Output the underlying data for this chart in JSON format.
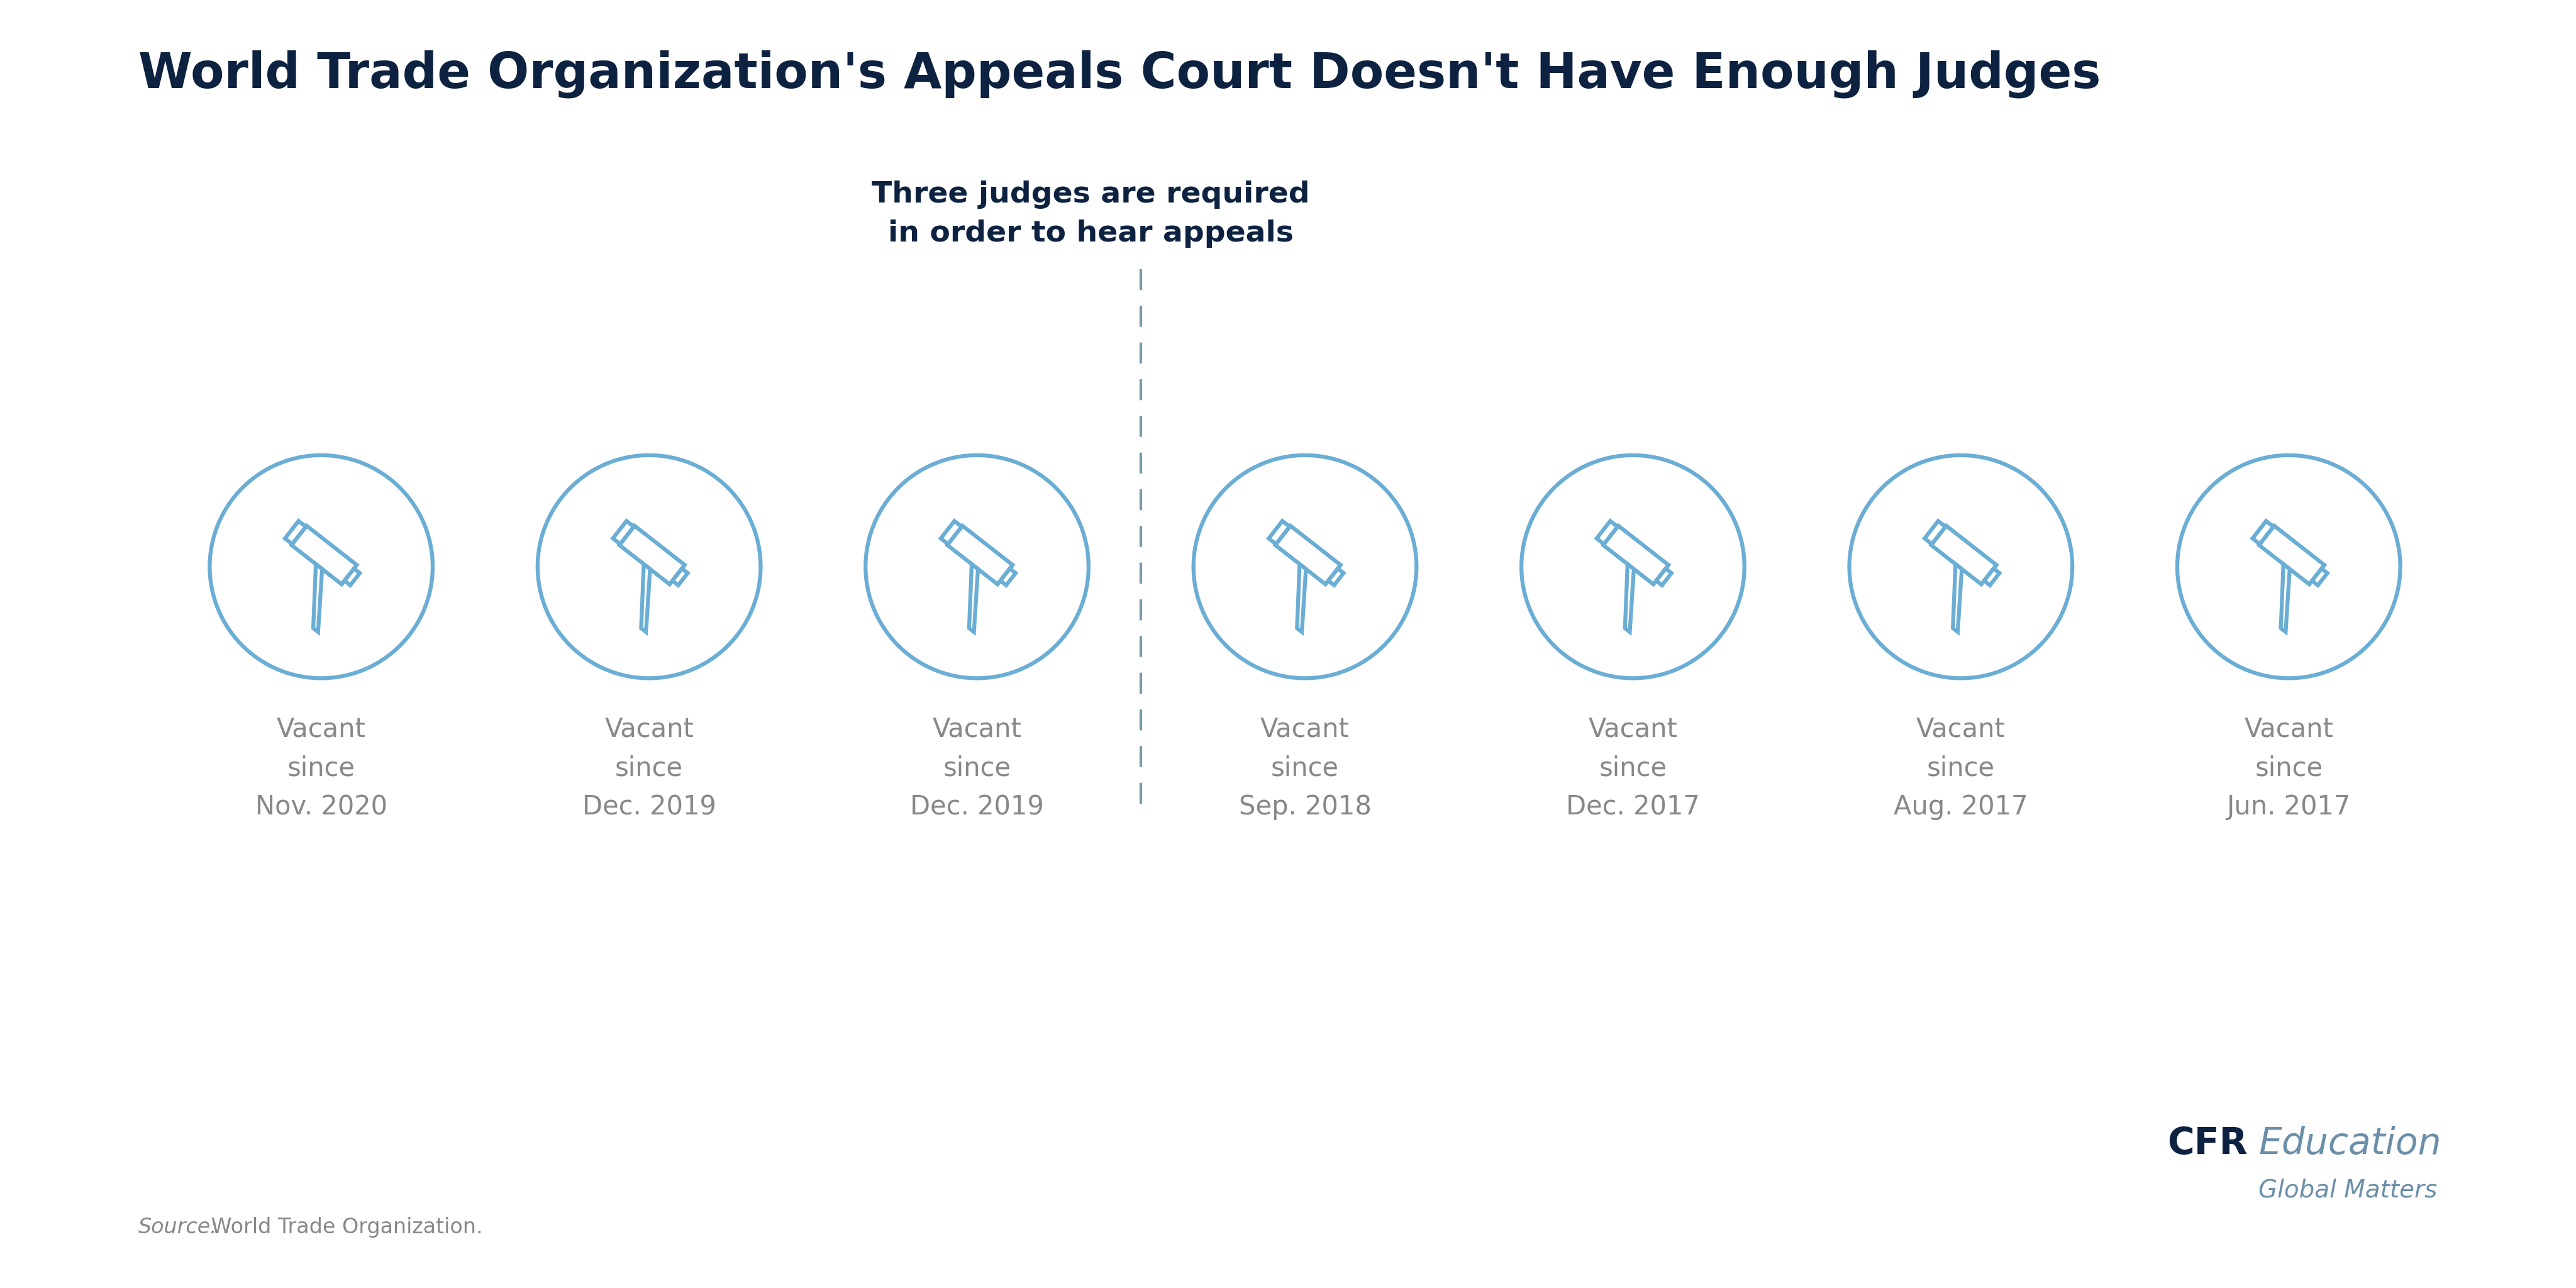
{
  "title": "World Trade Organization's Appeals Court Doesn't Have Enough Judges",
  "title_color": "#0d2240",
  "title_fontsize": 56,
  "annotation_text": "Three judges are required\nin order to hear appeals",
  "annotation_color": "#0d2240",
  "annotation_fontsize": 34,
  "source_text_italic": "Source:",
  "source_text_normal": " World Trade Organization.",
  "source_fontsize": 24,
  "cfr_bold": "CFR",
  "cfr_light": "Education",
  "cfr_sub": "Global Matters",
  "cfr_bold_color": "#0d2240",
  "cfr_light_color": "#6b8fa8",
  "cfr_fontsize": 42,
  "cfr_sub_fontsize": 28,
  "gavel_color": "#6aadd5",
  "gavel_lw": 4.5,
  "dashed_line_color": "#7a9aaa",
  "label_color": "#888888",
  "label_fontsize": 30,
  "judges": [
    {
      "label": "Vacant\nsince\nNov. 2020"
    },
    {
      "label": "Vacant\nsince\nDec. 2019"
    },
    {
      "label": "Vacant\nsince\nDec. 2019"
    },
    {
      "label": "Vacant\nsince\nSep. 2018"
    },
    {
      "label": "Vacant\nsince\nDec. 2017"
    },
    {
      "label": "Vacant\nsince\nAug. 2017"
    },
    {
      "label": "Vacant\nsince\nJun. 2017"
    }
  ],
  "background_color": "#ffffff"
}
